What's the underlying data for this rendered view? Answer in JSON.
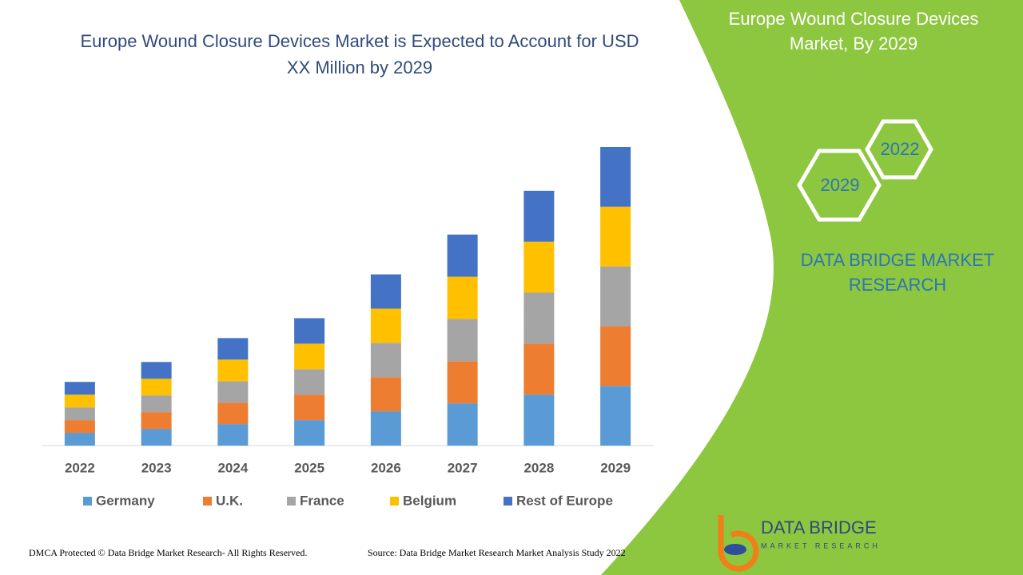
{
  "chart_data": {
    "type": "stacked-bar",
    "title": "Europe Wound Closure Devices Market is Expected to Account for USD XX Million by 2029",
    "categories": [
      "2022",
      "2023",
      "2024",
      "2025",
      "2026",
      "2027",
      "2028",
      "2029"
    ],
    "series": [
      {
        "name": "Germany",
        "color": "#5b9bd5",
        "values": [
          16,
          21,
          27,
          32,
          43,
          53,
          64,
          75
        ]
      },
      {
        "name": "U.K.",
        "color": "#ed7d31",
        "values": [
          16,
          21,
          27,
          32,
          43,
          53,
          64,
          75
        ]
      },
      {
        "name": "France",
        "color": "#a5a5a5",
        "values": [
          16,
          21,
          27,
          32,
          43,
          53,
          64,
          75
        ]
      },
      {
        "name": "Belgium",
        "color": "#ffc000",
        "values": [
          16,
          21,
          27,
          32,
          43,
          53,
          64,
          75
        ]
      },
      {
        "name": "Rest of Europe",
        "color": "#4472c4",
        "values": [
          16,
          21,
          27,
          32,
          43,
          53,
          64,
          75
        ]
      }
    ],
    "legend": "bottom"
  },
  "side_panel": {
    "title": "Europe Wound Closure Devices Market, By 2029",
    "hex_top": "2022",
    "hex_bottom": "2029",
    "brand": "DATA BRIDGE MARKET RESEARCH"
  },
  "logo": {
    "name": "DATA BRIDGE",
    "tagline": "MARKET RESEARCH"
  },
  "footer": {
    "left": "DMCA Protected © Data Bridge Market Research- All Rights Reserved.",
    "right": "Source: Data Bridge Market Research Market Analysis Study 2022"
  }
}
